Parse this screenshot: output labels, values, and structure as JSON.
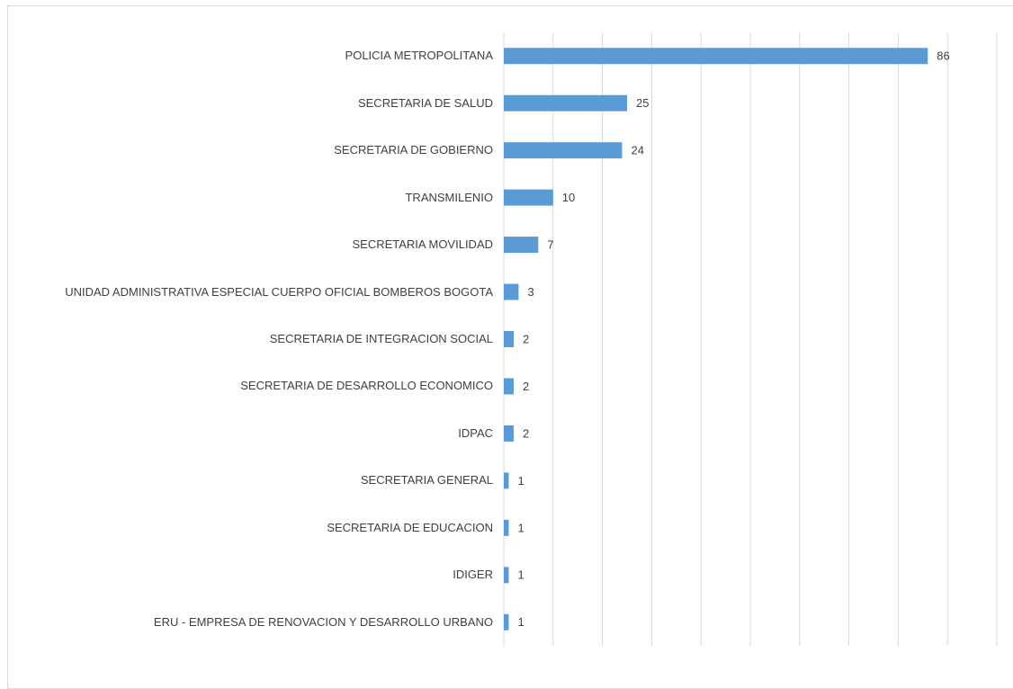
{
  "chart_data": {
    "type": "barh",
    "categories": [
      "POLICIA METROPOLITANA",
      "SECRETARIA DE SALUD",
      "SECRETARIA DE GOBIERNO",
      "TRANSMILENIO",
      "SECRETARIA MOVILIDAD",
      "UNIDAD ADMINISTRATIVA ESPECIAL CUERPO OFICIAL BOMBEROS BOGOTA",
      "SECRETARIA DE INTEGRACION SOCIAL",
      "SECRETARIA DE DESARROLLO ECONOMICO",
      "IDPAC",
      "SECRETARIA GENERAL",
      "SECRETARIA DE EDUCACION",
      "IDIGER",
      "ERU - EMPRESA DE RENOVACION Y DESARROLLO URBANO"
    ],
    "values": [
      86,
      25,
      24,
      10,
      7,
      3,
      2,
      2,
      2,
      1,
      1,
      1,
      1
    ],
    "color": "#5b9bd5",
    "xlim": [
      0,
      100
    ],
    "xticks": [
      0,
      10,
      20,
      30,
      40,
      50,
      60,
      70,
      80,
      90,
      100
    ],
    "grid": true
  }
}
